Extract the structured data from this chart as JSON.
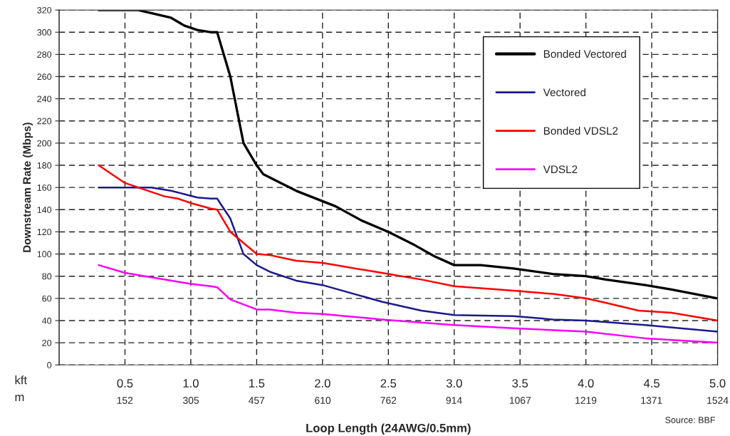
{
  "chart_data": {
    "type": "line",
    "xlabel": "Loop Length (24AWG/0.5mm)",
    "ylabel": "Downstream Rate (Mbps)",
    "xlim": [
      0,
      5
    ],
    "xticks": [
      0.5,
      {
        "value": 1,
        "label": "1.0"
      },
      1.5,
      {
        "value": 2,
        "label": "2.0"
      },
      2.5,
      {
        "value": 3,
        "label": "3.0"
      },
      3.5,
      {
        "value": 4,
        "label": "4.0"
      },
      4.5,
      {
        "value": 5,
        "label": "5.0"
      }
    ],
    "x2lim": [
      0,
      1524
    ],
    "x2ticks": [
      152,
      305,
      457,
      610,
      762,
      914,
      1067,
      1219,
      1371,
      1524
    ],
    "ylim": [
      0,
      320
    ],
    "yticks": [
      0,
      20,
      40,
      60,
      80,
      100,
      120,
      140,
      160,
      180,
      200,
      220,
      240,
      260,
      280,
      300,
      320
    ],
    "grid": true,
    "legend": "top right",
    "line_style": "solid",
    "marker": "none",
    "annotations": [
      "kft",
      "m",
      "Source: BBF"
    ],
    "series": [
      {
        "name": "Bonded Vectored",
        "color": "#000000",
        "x": [
          0.3,
          0.6,
          0.85,
          0.95,
          1.05,
          1.15,
          1.2,
          1.3,
          1.4,
          1.5,
          1.55,
          1.8,
          2.1,
          2.3,
          2.5,
          2.7,
          2.85,
          3.0,
          3.2,
          3.45,
          3.75,
          4.0,
          4.15,
          4.45,
          4.65,
          5.0
        ],
        "values": [
          320,
          320,
          313,
          306,
          302,
          300,
          300,
          260,
          200,
          180,
          172,
          157,
          143,
          130,
          120,
          108,
          98,
          90,
          90,
          87,
          82,
          80,
          77,
          72,
          68,
          60
        ]
      },
      {
        "name": "Vectored",
        "color": "#1a1a8c",
        "x": [
          0.3,
          0.7,
          0.85,
          0.95,
          1.05,
          1.15,
          1.2,
          1.3,
          1.4,
          1.5,
          1.6,
          1.8,
          2.0,
          2.45,
          2.75,
          3.0,
          3.45,
          3.75,
          4.0,
          4.45,
          5.0
        ],
        "values": [
          160,
          160,
          157,
          154,
          151,
          150,
          150,
          132,
          100,
          90,
          84,
          76,
          72,
          57,
          49,
          45,
          44,
          41,
          40,
          36,
          30
        ]
      },
      {
        "name": "Bonded VDSL2",
        "color": "#ff0000",
        "x": [
          0.3,
          0.5,
          0.8,
          0.9,
          1.0,
          1.15,
          1.2,
          1.3,
          1.5,
          1.6,
          1.8,
          2.0,
          2.45,
          2.75,
          3.0,
          3.45,
          3.75,
          4.0,
          4.15,
          4.4,
          4.65,
          5.0
        ],
        "values": [
          180,
          164,
          152,
          150,
          146,
          141,
          140,
          120,
          100,
          99,
          94,
          92,
          83,
          77,
          71,
          67,
          64,
          60,
          56,
          49,
          47,
          40
        ]
      },
      {
        "name": "VDSL2",
        "color": "#ff00ff",
        "x": [
          0.3,
          0.5,
          0.7,
          1.0,
          1.15,
          1.2,
          1.3,
          1.5,
          1.6,
          1.8,
          2.0,
          2.45,
          3.0,
          3.45,
          4.0,
          4.45,
          5.0
        ],
        "values": [
          90,
          83,
          79,
          73,
          71,
          70,
          59,
          50,
          50,
          47,
          46,
          41,
          36,
          33,
          30,
          24,
          20
        ]
      }
    ]
  }
}
